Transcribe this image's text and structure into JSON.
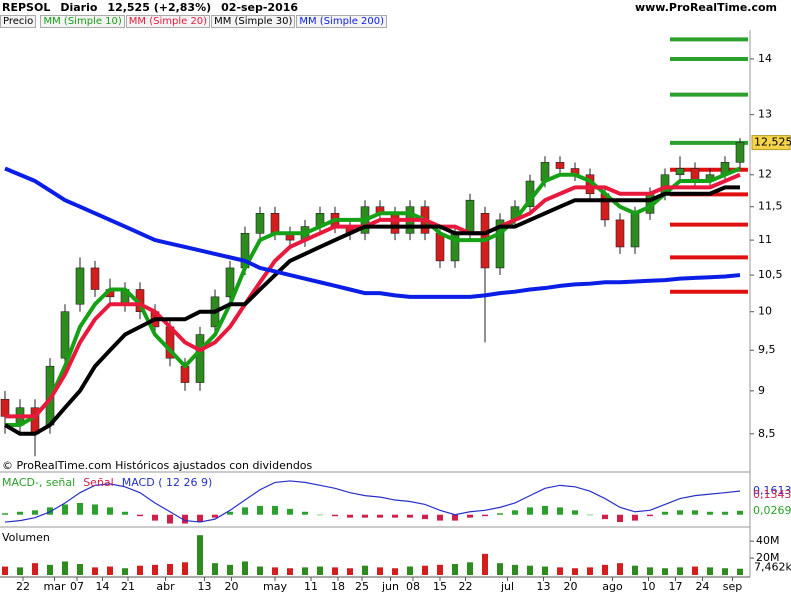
{
  "header": {
    "symbol": "REPSOL",
    "period": "Diario",
    "quote": "12,525 (+2,83%)",
    "date": "02-sep-2016",
    "site": "www.ProRealTime.com"
  },
  "chart_data": [
    {
      "type": "candlestick",
      "name": "Precio",
      "log": true,
      "up_color": "#2e8b1e",
      "down_color": "#d41e1e",
      "open": [
        8.9,
        8.6,
        8.8,
        8.6,
        9.4,
        10.1,
        10.6,
        10.3,
        10.1,
        10.3,
        10.0,
        9.8,
        9.3,
        9.1,
        9.8,
        10.2,
        10.6,
        11.1,
        11.4,
        11.1,
        11.0,
        11.2,
        11.4,
        11.2,
        11.1,
        11.5,
        11.4,
        11.1,
        11.5,
        11.1,
        10.7,
        11.1,
        11.4,
        10.6,
        11.3,
        11.5,
        11.9,
        12.2,
        12.1,
        12.0,
        11.7,
        11.3,
        10.9,
        11.4,
        11.7,
        12.0,
        12.1,
        11.9,
        12.0,
        12.2
      ],
      "high": [
        9.0,
        8.9,
        8.9,
        9.4,
        10.1,
        10.75,
        10.7,
        10.45,
        10.4,
        10.4,
        10.1,
        9.9,
        9.4,
        9.8,
        10.3,
        10.7,
        11.2,
        11.5,
        11.5,
        11.2,
        11.3,
        11.5,
        11.5,
        11.3,
        11.6,
        11.6,
        11.5,
        11.6,
        11.6,
        11.2,
        11.2,
        11.7,
        11.5,
        11.4,
        11.6,
        12.0,
        12.3,
        12.3,
        12.2,
        12.1,
        11.8,
        11.4,
        11.5,
        11.8,
        12.1,
        12.3,
        12.2,
        12.1,
        12.3,
        12.6
      ],
      "low": [
        8.5,
        8.5,
        8.25,
        8.5,
        9.3,
        10.0,
        10.2,
        10.1,
        10.0,
        9.9,
        9.7,
        9.3,
        9.0,
        9.0,
        9.7,
        10.1,
        10.5,
        11.0,
        11.0,
        10.9,
        10.9,
        11.1,
        11.1,
        11.0,
        11.0,
        11.3,
        11.0,
        11.0,
        11.0,
        10.6,
        10.6,
        11.0,
        9.6,
        10.5,
        11.2,
        11.4,
        11.8,
        12.0,
        11.9,
        11.6,
        11.2,
        10.8,
        10.8,
        11.3,
        11.6,
        11.9,
        11.8,
        11.8,
        11.9,
        12.1
      ],
      "close": [
        8.7,
        8.8,
        8.5,
        9.3,
        10.0,
        10.6,
        10.3,
        10.2,
        10.3,
        10.0,
        9.8,
        9.4,
        9.1,
        9.7,
        10.2,
        10.6,
        11.1,
        11.4,
        11.1,
        11.0,
        11.2,
        11.4,
        11.2,
        11.1,
        11.5,
        11.4,
        11.1,
        11.5,
        11.1,
        10.7,
        11.1,
        11.6,
        10.6,
        11.3,
        11.5,
        11.9,
        12.2,
        12.1,
        12.0,
        11.7,
        11.3,
        10.9,
        11.4,
        11.7,
        12.0,
        12.1,
        11.9,
        12.0,
        12.2,
        12.525
      ],
      "close_label": "12,525",
      "overlays": [
        {
          "name": "MM (Simple 10)",
          "color": "#16a016",
          "values": [
            8.6,
            8.6,
            8.7,
            8.9,
            9.3,
            9.8,
            10.1,
            10.3,
            10.3,
            10.1,
            9.7,
            9.5,
            9.3,
            9.5,
            9.7,
            10.1,
            10.6,
            11.0,
            11.1,
            11.1,
            11.1,
            11.2,
            11.3,
            11.3,
            11.3,
            11.4,
            11.4,
            11.4,
            11.3,
            11.1,
            11.0,
            11.0,
            11.0,
            11.1,
            11.3,
            11.6,
            11.9,
            12.0,
            12.0,
            11.9,
            11.7,
            11.5,
            11.4,
            11.5,
            11.7,
            11.9,
            11.9,
            11.9,
            12.0,
            12.1
          ]
        },
        {
          "name": "MM (Simple 20)",
          "color": "#e8193c",
          "values": [
            8.7,
            8.7,
            8.7,
            8.9,
            9.2,
            9.6,
            9.9,
            10.1,
            10.1,
            10.1,
            10.0,
            9.8,
            9.6,
            9.5,
            9.6,
            9.8,
            10.1,
            10.4,
            10.7,
            10.9,
            11.0,
            11.1,
            11.2,
            11.2,
            11.2,
            11.3,
            11.3,
            11.3,
            11.3,
            11.2,
            11.2,
            11.1,
            11.1,
            11.2,
            11.3,
            11.4,
            11.6,
            11.7,
            11.8,
            11.8,
            11.8,
            11.7,
            11.7,
            11.7,
            11.8,
            11.8,
            11.8,
            11.8,
            11.9,
            12.0
          ]
        },
        {
          "name": "MM (Simple 30)",
          "color": "#000000",
          "values": [
            8.6,
            8.5,
            8.5,
            8.6,
            8.8,
            9.0,
            9.3,
            9.5,
            9.7,
            9.8,
            9.9,
            9.9,
            9.9,
            10.0,
            10.0,
            10.1,
            10.1,
            10.3,
            10.5,
            10.7,
            10.8,
            10.9,
            11.0,
            11.1,
            11.2,
            11.2,
            11.2,
            11.2,
            11.2,
            11.2,
            11.1,
            11.1,
            11.1,
            11.2,
            11.2,
            11.3,
            11.4,
            11.5,
            11.6,
            11.6,
            11.6,
            11.6,
            11.6,
            11.6,
            11.7,
            11.7,
            11.7,
            11.7,
            11.8,
            11.8
          ]
        },
        {
          "name": "MM (Simple 200)",
          "color": "#0a1ee6",
          "values": [
            12.1,
            12.0,
            11.9,
            11.75,
            11.6,
            11.5,
            11.4,
            11.3,
            11.2,
            11.1,
            11.0,
            10.95,
            10.9,
            10.85,
            10.8,
            10.75,
            10.7,
            10.6,
            10.55,
            10.5,
            10.45,
            10.4,
            10.35,
            10.3,
            10.25,
            10.25,
            10.22,
            10.2,
            10.2,
            10.2,
            10.2,
            10.2,
            10.22,
            10.25,
            10.27,
            10.3,
            10.32,
            10.35,
            10.37,
            10.38,
            10.4,
            10.4,
            10.41,
            10.42,
            10.43,
            10.45,
            10.46,
            10.47,
            10.48,
            10.5
          ]
        }
      ],
      "levels": [
        {
          "value": 14.37,
          "color": "#2ca02c"
        },
        {
          "value": 14.0,
          "color": "#2ca02c"
        },
        {
          "value": 13.35,
          "color": "#2ca02c"
        },
        {
          "value": 12.52,
          "color": "#2ca02c"
        },
        {
          "value": 12.08,
          "color": "#e01010"
        },
        {
          "value": 11.69,
          "color": "#e01010"
        },
        {
          "value": 11.23,
          "color": "#e01010"
        },
        {
          "value": 10.75,
          "color": "#e01010"
        },
        {
          "value": 10.27,
          "color": "#e01010"
        }
      ],
      "ylim": [
        8.1,
        14.55
      ],
      "yticks": [
        {
          "value": 8.5,
          "label": "8,5"
        },
        9,
        {
          "value": 9.5,
          "label": "9,5"
        },
        10,
        {
          "value": 10.5,
          "label": "10,5"
        },
        11,
        {
          "value": 11.5,
          "label": "11,5"
        },
        12,
        13,
        14
      ],
      "note": "© ProRealTime.com Históricos ajustados con dividendos"
    },
    {
      "type": "macd",
      "ylim": [
        -0.07,
        0.25
      ],
      "series": [
        {
          "name": "MACD-, señal",
          "color": "#2ca02c",
          "down_color": "#d0204a",
          "values": [
            0.01,
            0.02,
            0.03,
            0.05,
            0.07,
            0.08,
            0.07,
            0.05,
            0.02,
            -0.01,
            -0.04,
            -0.06,
            -0.06,
            -0.05,
            -0.02,
            0.02,
            0.05,
            0.06,
            0.06,
            0.04,
            0.02,
            0.0,
            -0.01,
            -0.02,
            -0.02,
            -0.02,
            -0.02,
            -0.02,
            -0.03,
            -0.04,
            -0.04,
            -0.02,
            -0.01,
            0.01,
            0.03,
            0.05,
            0.06,
            0.05,
            0.03,
            0.0,
            -0.03,
            -0.05,
            -0.04,
            -0.01,
            0.02,
            0.03,
            0.03,
            0.02,
            0.02,
            0.0269
          ],
          "last_label": "0,0269"
        },
        {
          "name": "MACD ( 12 26 9)",
          "color": "#2630c8",
          "values": [
            -0.05,
            -0.04,
            -0.02,
            0.02,
            0.08,
            0.15,
            0.2,
            0.21,
            0.19,
            0.15,
            0.08,
            0.02,
            -0.04,
            -0.05,
            -0.03,
            0.03,
            0.1,
            0.17,
            0.22,
            0.23,
            0.22,
            0.2,
            0.18,
            0.15,
            0.13,
            0.12,
            0.1,
            0.09,
            0.07,
            0.03,
            0.0,
            0.02,
            0.03,
            0.05,
            0.08,
            0.13,
            0.18,
            0.2,
            0.19,
            0.16,
            0.11,
            0.05,
            0.02,
            0.03,
            0.07,
            0.11,
            0.13,
            0.14,
            0.15,
            0.1613
          ],
          "last_label": "0,1613"
        }
      ],
      "signal": {
        "name": "Señal",
        "color": "#d0204a",
        "value": 0.1343,
        "label": "0,1343"
      }
    },
    {
      "type": "volume",
      "name": "Volumen",
      "ylim": [
        0,
        52
      ],
      "values": [
        10,
        9,
        14,
        12,
        16,
        13,
        9,
        10,
        8,
        11,
        12,
        13,
        15,
        47,
        14,
        12,
        16,
        10,
        9,
        8,
        9,
        10,
        9,
        8,
        11,
        9,
        8,
        10,
        11,
        12,
        13,
        15,
        25,
        14,
        12,
        11,
        10,
        9,
        8,
        9,
        12,
        14,
        11,
        9,
        8,
        9,
        10,
        9,
        8,
        7.462
      ],
      "last_label": "7,462k",
      "yticks": [
        {
          "value": 20,
          "label": "20M"
        },
        {
          "value": 40,
          "label": "40M"
        }
      ],
      "xticks": [
        {
          "value": 1.2,
          "label": "22"
        },
        {
          "value": 3.3,
          "label": "mar"
        },
        {
          "value": 4.8,
          "label": "07"
        },
        {
          "value": 6.5,
          "label": "14"
        },
        {
          "value": 8.2,
          "label": "21"
        },
        {
          "value": 10.7,
          "label": "abr"
        },
        {
          "value": 13.3,
          "label": "13"
        },
        {
          "value": 15.1,
          "label": "20"
        },
        {
          "value": 18,
          "label": "may"
        },
        {
          "value": 20.4,
          "label": "11"
        },
        {
          "value": 22.2,
          "label": "18"
        },
        {
          "value": 23.8,
          "label": "25"
        },
        {
          "value": 25.7,
          "label": "jun"
        },
        {
          "value": 27.2,
          "label": "08"
        },
        {
          "value": 29,
          "label": "15"
        },
        {
          "value": 30.7,
          "label": "22"
        },
        {
          "value": 33.5,
          "label": "jul"
        },
        {
          "value": 35.9,
          "label": "13"
        },
        {
          "value": 37.7,
          "label": "20"
        },
        {
          "value": 40.5,
          "label": "ago"
        },
        {
          "value": 42.9,
          "label": "10"
        },
        {
          "value": 44.7,
          "label": "17"
        },
        {
          "value": 46.5,
          "label": "24"
        },
        {
          "value": 48.5,
          "label": "sep"
        }
      ]
    }
  ]
}
